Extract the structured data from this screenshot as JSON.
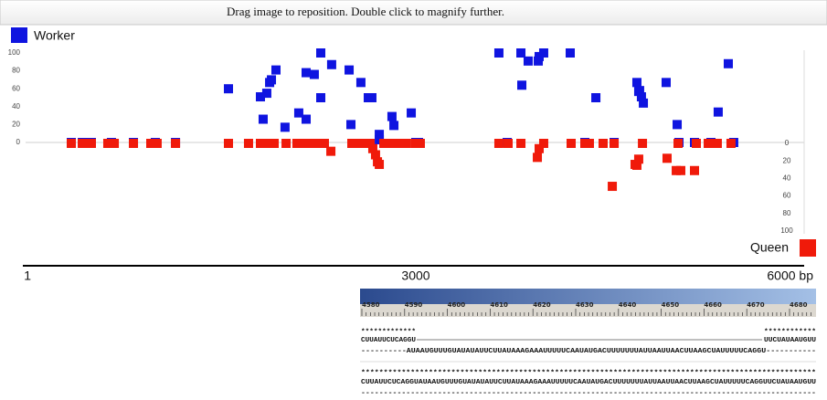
{
  "header": {
    "instruction": "Drag image to reposition. Double click to magnify further."
  },
  "chart_data": {
    "type": "scatter",
    "xlim": [
      0,
      6000
    ],
    "xticks": [
      1,
      3000,
      {
        "value": 6000,
        "label": "6000 bp"
      }
    ],
    "ylim": [
      0,
      100
    ],
    "yticks": [
      0,
      20,
      40,
      60,
      80,
      100
    ],
    "y2lim": [
      100,
      0
    ],
    "y2ticks": [
      0,
      20,
      40,
      60,
      80,
      100
    ],
    "series": [
      {
        "name": "Worker",
        "color": "#0f14e0",
        "x": [
          339,
          424,
          494,
          649,
          819,
          988,
          1144,
          1553,
          1800,
          1821,
          1849,
          1871,
          1885,
          1920,
          1990,
          2096,
          2153,
          2153,
          2216,
          2266,
          2266,
          2350,
          2485,
          2499,
          2576,
          2633,
          2661,
          2718,
          2718,
          2816,
          2831,
          2965,
          3000,
          3021,
          3642,
          3706,
          3812,
          3819,
          3868,
          3946,
          3953,
          3988,
          4193,
          4306,
          4391,
          4532,
          4708,
          4722,
          4729,
          4743,
          4758,
          4934,
          5019,
          5033,
          5153,
          5280,
          5336,
          5414,
          5456
        ],
        "values": [
          0,
          0,
          0,
          0,
          0,
          0,
          0,
          60,
          51,
          26,
          55,
          67,
          70,
          81,
          17,
          33,
          78,
          26,
          76,
          100,
          50,
          87,
          81,
          20,
          67,
          50,
          50,
          9,
          3,
          29,
          19,
          33,
          0,
          0,
          100,
          0,
          100,
          64,
          91,
          91,
          96,
          100,
          100,
          0,
          50,
          0,
          67,
          57,
          58,
          51,
          44,
          67,
          20,
          0,
          0,
          0,
          34,
          88,
          0
        ]
      },
      {
        "name": "Queen",
        "color": "#f01a0a",
        "axis": "y2",
        "x": [
          339,
          424,
          459,
          494,
          621,
          671,
          819,
          953,
          1002,
          1144,
          1553,
          1708,
          1800,
          1835,
          1871,
          1906,
          1998,
          2082,
          2118,
          2153,
          2188,
          2224,
          2259,
          2294,
          2344,
          2506,
          2576,
          2612,
          2647,
          2668,
          2689,
          2704,
          2718,
          2753,
          2788,
          2824,
          2859,
          2894,
          2929,
          3000,
          3035,
          3642,
          3713,
          3812,
          3939,
          3953,
          3988,
          4200,
          4306,
          4341,
          4447,
          4518,
          4532,
          4694,
          4708,
          4722,
          4751,
          4941,
          5012,
          5026,
          5047,
          5153,
          5167,
          5259,
          5294,
          5329,
          5435
        ],
        "values": [
          0,
          0,
          0,
          0,
          0,
          0,
          0,
          0,
          0,
          0,
          0,
          0,
          0,
          0,
          0,
          0,
          0,
          0,
          0,
          0,
          0,
          0,
          0,
          0,
          9,
          0,
          0,
          0,
          0,
          6,
          13,
          21,
          24,
          0,
          0,
          0,
          0,
          0,
          0,
          0,
          0,
          0,
          0,
          0,
          16,
          6,
          0,
          0,
          0,
          0,
          0,
          49,
          0,
          24,
          25,
          18,
          0,
          17,
          31,
          0,
          31,
          31,
          0,
          0,
          0,
          0,
          0
        ]
      }
    ]
  },
  "sequence_viewer": {
    "ruler_labels": [
      "4580",
      "4590",
      "4600",
      "4610",
      "4620",
      "4630",
      "4640",
      "4650",
      "4660",
      "4670",
      "4680"
    ],
    "block1": {
      "stars_left": "*************",
      "stars_right": "************",
      "seq_left": "CUUAUUCUCAGGU",
      "seq_right": "UUCUAUAAUGUU",
      "aligned": "----------AUAAUGUUUGUAUAUAUUCUUAUAAAGAAAUUUUUCAAUAUGACUUUUUUUAUUAAUUAACUUAAGCUAUUUUUCAGGU-----------"
    },
    "block2": {
      "stars": "*****************************************************************************************************",
      "seq": "CUUAUUCUCAGGUAUAAUGUUUGUAUAUAUUCUUAUAAAGAAAUUUUUCAAUAUGACUUUUUUUAUUAAUUAACUUAAGCUAUUUUUCAGGUUCUAUAAUGUU",
      "aligned": "-----------------------------------------------------------------------------------------------------"
    }
  }
}
